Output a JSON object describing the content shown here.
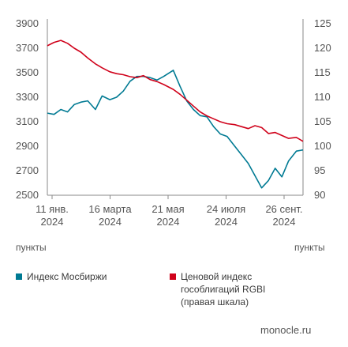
{
  "chart_data": {
    "type": "line",
    "x_ticks": [
      "11 янв.\n2024",
      "16 марта\n2024",
      "21 мая\n2024",
      "24 июля\n2024",
      "26 сент.\n2024"
    ],
    "y_left": {
      "label": "пункты",
      "ticks": [
        2500,
        2700,
        2900,
        3100,
        3300,
        3500,
        3700,
        3900
      ],
      "ylim": [
        2500,
        3900
      ]
    },
    "y_right": {
      "label": "пункты",
      "ticks": [
        90,
        95,
        100,
        105,
        110,
        115,
        120,
        125
      ],
      "ylim": [
        90,
        125
      ]
    },
    "xlim": [
      "2024-01-11",
      "2024-10-03"
    ],
    "grid": false,
    "series": [
      {
        "name": "Индекс Мосбиржи",
        "axis": "left",
        "color": "#007a93",
        "x": [
          "2024-01-11",
          "2024-01-18",
          "2024-01-25",
          "2024-02-01",
          "2024-02-08",
          "2024-02-15",
          "2024-02-22",
          "2024-03-01",
          "2024-03-08",
          "2024-03-16",
          "2024-03-23",
          "2024-03-30",
          "2024-04-06",
          "2024-04-13",
          "2024-04-20",
          "2024-04-27",
          "2024-05-04",
          "2024-05-11",
          "2024-05-21",
          "2024-05-28",
          "2024-06-04",
          "2024-06-11",
          "2024-06-18",
          "2024-06-25",
          "2024-07-02",
          "2024-07-09",
          "2024-07-16",
          "2024-07-24",
          "2024-07-31",
          "2024-08-07",
          "2024-08-14",
          "2024-08-21",
          "2024-08-28",
          "2024-09-04",
          "2024-09-11",
          "2024-09-18",
          "2024-09-26",
          "2024-10-03"
        ],
        "values": [
          3170,
          3160,
          3200,
          3180,
          3240,
          3260,
          3270,
          3200,
          3310,
          3280,
          3300,
          3350,
          3430,
          3470,
          3470,
          3460,
          3440,
          3470,
          3520,
          3390,
          3270,
          3200,
          3150,
          3140,
          3060,
          3000,
          2980,
          2900,
          2830,
          2760,
          2660,
          2560,
          2620,
          2720,
          2650,
          2780,
          2860,
          2870
        ]
      },
      {
        "name": "Ценовой индекс\nгособлигаций RGBI\n(правая шкала)",
        "axis": "right",
        "color": "#d0021b",
        "x": [
          "2024-01-11",
          "2024-01-18",
          "2024-01-25",
          "2024-02-01",
          "2024-02-08",
          "2024-02-15",
          "2024-02-22",
          "2024-03-01",
          "2024-03-08",
          "2024-03-16",
          "2024-03-23",
          "2024-03-30",
          "2024-04-06",
          "2024-04-13",
          "2024-04-20",
          "2024-04-27",
          "2024-05-04",
          "2024-05-11",
          "2024-05-21",
          "2024-05-28",
          "2024-06-04",
          "2024-06-11",
          "2024-06-18",
          "2024-06-25",
          "2024-07-02",
          "2024-07-09",
          "2024-07-16",
          "2024-07-24",
          "2024-07-31",
          "2024-08-07",
          "2024-08-14",
          "2024-08-21",
          "2024-08-28",
          "2024-09-04",
          "2024-09-11",
          "2024-09-18",
          "2024-09-26",
          "2024-10-03"
        ],
        "values": [
          120.5,
          121.2,
          121.6,
          121.0,
          120.0,
          119.2,
          118.0,
          116.8,
          116.0,
          115.2,
          114.8,
          114.6,
          114.2,
          114.0,
          114.4,
          113.6,
          113.2,
          112.6,
          111.6,
          110.6,
          109.4,
          108.2,
          107.0,
          106.2,
          105.6,
          105.0,
          104.6,
          104.4,
          104.0,
          103.6,
          104.2,
          103.8,
          102.6,
          102.8,
          102.2,
          101.6,
          101.8,
          101.0
        ]
      }
    ]
  },
  "source": "monocle.ru"
}
